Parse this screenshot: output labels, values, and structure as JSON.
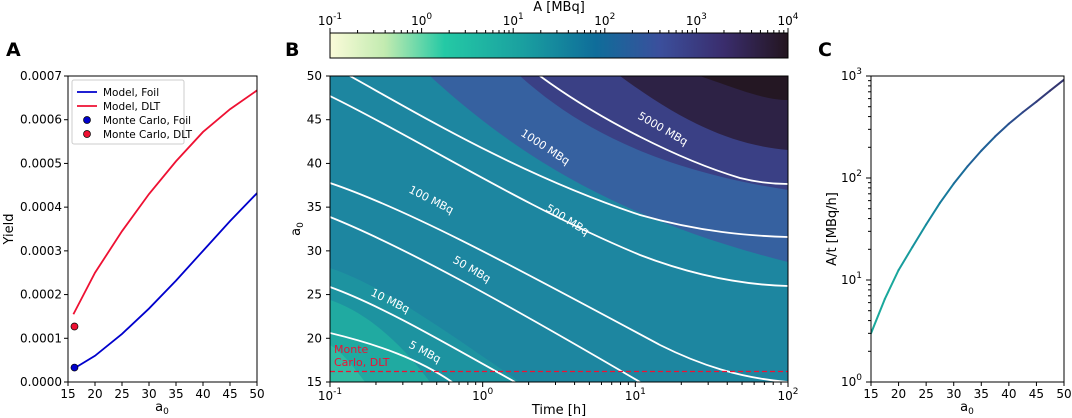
{
  "panels": {
    "A": {
      "label": "A"
    },
    "B": {
      "label": "B"
    },
    "C": {
      "label": "C"
    }
  },
  "chart_data": [
    {
      "id": "A",
      "type": "line",
      "xlabel": "a₀",
      "ylabel": "Yield",
      "xlim": [
        15,
        50
      ],
      "ylim": [
        0,
        0.0007
      ],
      "xticks": [
        "15",
        "20",
        "25",
        "30",
        "35",
        "40",
        "45",
        "50"
      ],
      "yticks": [
        "0.0000",
        "0.0001",
        "0.0002",
        "0.0003",
        "0.0004",
        "0.0005",
        "0.0006",
        "0.0007"
      ],
      "legend_position": "upper-left",
      "series": [
        {
          "name": "Model, Foil",
          "type": "line",
          "color": "#0000cc",
          "x": [
            16,
            20,
            25,
            30,
            35,
            40,
            45,
            50
          ],
          "y": [
            3e-05,
            6e-05,
            0.00011,
            0.000168,
            0.000232,
            0.0003,
            0.000368,
            0.000432
          ]
        },
        {
          "name": "Model, DLT",
          "type": "line",
          "color": "#ee1133",
          "x": [
            16,
            20,
            25,
            30,
            35,
            40,
            45,
            50
          ],
          "y": [
            0.000155,
            0.00025,
            0.000345,
            0.00043,
            0.000505,
            0.000572,
            0.000624,
            0.000667
          ]
        },
        {
          "name": "Monte Carlo, Foil",
          "type": "scatter",
          "color": "#0000cc",
          "x": [
            16.2
          ],
          "y": [
            3.3e-05
          ]
        },
        {
          "name": "Monte Carlo, DLT",
          "type": "scatter",
          "color": "#ee1133",
          "x": [
            16.2
          ],
          "y": [
            0.000127
          ]
        }
      ]
    },
    {
      "id": "B",
      "type": "heatmap",
      "xlabel": "Time [h]",
      "ylabel": "a₀",
      "x_scale": "log",
      "xlim": [
        0.1,
        100
      ],
      "ylim": [
        15,
        50
      ],
      "xticks": [
        0.1,
        1,
        10,
        100
      ],
      "yticks": [
        "15",
        "20",
        "25",
        "30",
        "35",
        "40",
        "45",
        "50"
      ],
      "colorbar": {
        "label": "A [MBq]",
        "scale": "log",
        "range": [
          0.1,
          10000
        ],
        "ticks": [
          0.1,
          1,
          10,
          100,
          1000,
          10000
        ]
      },
      "contours": [
        {
          "label": "5 MBq",
          "level": 5
        },
        {
          "label": "10 MBq",
          "level": 10
        },
        {
          "label": "50 MBq",
          "level": 50
        },
        {
          "label": "100 MBq",
          "level": 100
        },
        {
          "label": "500 MBq",
          "level": 500
        },
        {
          "label": "1000 MBq",
          "level": 1000
        },
        {
          "label": "5000 MBq",
          "level": 5000
        }
      ],
      "reference_line": {
        "label": "Monte\nCarlo, DLT",
        "a0": 16.2,
        "color": "#ee1133"
      }
    },
    {
      "id": "C",
      "type": "line",
      "xlabel": "a₀",
      "ylabel": "A/t [MBq/h]",
      "y_scale": "log",
      "xlim": [
        15,
        50
      ],
      "ylim": [
        1,
        1000
      ],
      "xticks": [
        "15",
        "20",
        "25",
        "30",
        "35",
        "40",
        "45",
        "50"
      ],
      "yticks": [
        1,
        10,
        100,
        1000
      ],
      "series": [
        {
          "name": "",
          "type": "line",
          "x": [
            15,
            17.5,
            20,
            22.5,
            25,
            27.5,
            30,
            32.5,
            35,
            37.5,
            40,
            42.5,
            45,
            47.5,
            50
          ],
          "y": [
            3.0,
            6.5,
            12.5,
            21,
            35,
            57,
            88,
            130,
            185,
            255,
            340,
            440,
            560,
            720,
            920
          ]
        }
      ]
    }
  ]
}
